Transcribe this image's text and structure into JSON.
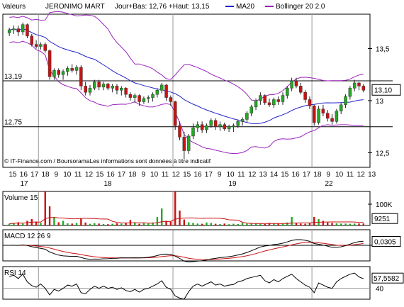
{
  "header": {
    "label_prefix": "Valeurs",
    "security": "JERONIMO MART",
    "range_text": "Jour+Bas: 12,76 +Haut: 13,15",
    "ma_legend": "MA20",
    "boll_legend": "Bollinger 20 2.0"
  },
  "colors": {
    "up": "#22aa22",
    "down": "#cc1111",
    "ma": "#2222cc",
    "bollinger": "#9922bb",
    "grid": "#9a9a9a",
    "volume_ma": "#cc1111",
    "macd_line": "#000000",
    "macd_signal": "#cc1111",
    "rsi_line": "#000000",
    "value_box": "#000000"
  },
  "price_panel": {
    "y_ticks": [
      "13,5",
      "13",
      "12,5"
    ],
    "hline_labels": [
      "13,19",
      "12,75"
    ],
    "last_value": "13,10",
    "watermark": "© IT-Finance.com / BoursoramaLes informations sont données à titre indicatif"
  },
  "x_axis": {
    "day_labels": [
      "15",
      "16",
      "17",
      "18",
      "9",
      "10",
      "11",
      "12",
      "15",
      "16",
      "17",
      "18",
      "9",
      "10",
      "11",
      "12",
      "15",
      "16",
      "17",
      "9",
      "10",
      "11",
      "12",
      "13",
      "14",
      "15",
      "16",
      "17",
      "18",
      "9",
      "10",
      "11",
      "12",
      "13"
    ],
    "month_labels": [
      "17",
      "18",
      "19",
      "22"
    ]
  },
  "volume_panel": {
    "title": "Volume 15",
    "axis_label": "100K",
    "last_value": "9251"
  },
  "macd_panel": {
    "title": "MACD 12 26 9",
    "last_value": "0,0305"
  },
  "rsi_panel": {
    "title": "RSI 14",
    "last_value": "57,5582",
    "axis_label": "40"
  },
  "chart_data": {
    "type": "candlestick",
    "instrument": "JERONIMO MART",
    "price_axis": {
      "ylim": [
        12.36,
        13.83
      ],
      "ticks": [
        13.5,
        13.0,
        12.5
      ]
    },
    "reference_lines": [
      13.19,
      12.75
    ],
    "last_price": 13.1,
    "day_range": {
      "low": 12.76,
      "high": 13.15
    },
    "candles": [
      {
        "o": 13.65,
        "h": 13.7,
        "l": 13.62,
        "c": 13.68
      },
      {
        "o": 13.68,
        "h": 13.72,
        "l": 13.64,
        "c": 13.69
      },
      {
        "o": 13.69,
        "h": 13.72,
        "l": 13.62,
        "c": 13.66
      },
      {
        "o": 13.66,
        "h": 13.75,
        "l": 13.63,
        "c": 13.73
      },
      {
        "o": 13.73,
        "h": 13.74,
        "l": 13.6,
        "c": 13.62
      },
      {
        "o": 13.62,
        "h": 13.64,
        "l": 13.52,
        "c": 13.54
      },
      {
        "o": 13.54,
        "h": 13.58,
        "l": 13.5,
        "c": 13.52
      },
      {
        "o": 13.52,
        "h": 13.56,
        "l": 13.49,
        "c": 13.54
      },
      {
        "o": 13.54,
        "h": 13.56,
        "l": 13.46,
        "c": 13.48
      },
      {
        "o": 13.48,
        "h": 13.49,
        "l": 13.2,
        "c": 13.23
      },
      {
        "o": 13.23,
        "h": 13.31,
        "l": 13.2,
        "c": 13.29
      },
      {
        "o": 13.29,
        "h": 13.31,
        "l": 13.22,
        "c": 13.25
      },
      {
        "o": 13.25,
        "h": 13.3,
        "l": 13.2,
        "c": 13.28
      },
      {
        "o": 13.28,
        "h": 13.33,
        "l": 13.24,
        "c": 13.31
      },
      {
        "o": 13.31,
        "h": 13.35,
        "l": 13.27,
        "c": 13.29
      },
      {
        "o": 13.29,
        "h": 13.34,
        "l": 13.25,
        "c": 13.32
      },
      {
        "o": 13.32,
        "h": 13.34,
        "l": 13.1,
        "c": 13.14
      },
      {
        "o": 13.14,
        "h": 13.18,
        "l": 13.05,
        "c": 13.08
      },
      {
        "o": 13.08,
        "h": 13.15,
        "l": 13.05,
        "c": 13.12
      },
      {
        "o": 13.12,
        "h": 13.2,
        "l": 13.1,
        "c": 13.18
      },
      {
        "o": 13.18,
        "h": 13.2,
        "l": 13.1,
        "c": 13.13
      },
      {
        "o": 13.13,
        "h": 13.18,
        "l": 13.1,
        "c": 13.16
      },
      {
        "o": 13.16,
        "h": 13.17,
        "l": 13.1,
        "c": 13.12
      },
      {
        "o": 13.12,
        "h": 13.16,
        "l": 13.08,
        "c": 13.14
      },
      {
        "o": 13.14,
        "h": 13.16,
        "l": 13.06,
        "c": 13.1
      },
      {
        "o": 13.1,
        "h": 13.14,
        "l": 13.05,
        "c": 13.12
      },
      {
        "o": 13.12,
        "h": 13.13,
        "l": 13.03,
        "c": 13.06
      },
      {
        "o": 13.06,
        "h": 13.08,
        "l": 13.0,
        "c": 13.03
      },
      {
        "o": 13.03,
        "h": 13.07,
        "l": 12.98,
        "c": 13.05
      },
      {
        "o": 13.05,
        "h": 13.06,
        "l": 12.95,
        "c": 12.99
      },
      {
        "o": 12.99,
        "h": 13.04,
        "l": 12.97,
        "c": 13.02
      },
      {
        "o": 13.02,
        "h": 13.05,
        "l": 12.98,
        "c": 13.03
      },
      {
        "o": 13.03,
        "h": 13.08,
        "l": 12.99,
        "c": 13.06
      },
      {
        "o": 13.06,
        "h": 13.12,
        "l": 13.03,
        "c": 13.1
      },
      {
        "o": 13.1,
        "h": 13.17,
        "l": 13.07,
        "c": 13.15
      },
      {
        "o": 13.15,
        "h": 13.16,
        "l": 13.0,
        "c": 13.03
      },
      {
        "o": 13.03,
        "h": 13.05,
        "l": 12.95,
        "c": 12.99
      },
      {
        "o": 12.99,
        "h": 13.0,
        "l": 12.72,
        "c": 12.76
      },
      {
        "o": 12.76,
        "h": 12.8,
        "l": 12.62,
        "c": 12.65
      },
      {
        "o": 12.65,
        "h": 12.7,
        "l": 12.44,
        "c": 12.52
      },
      {
        "o": 12.52,
        "h": 12.68,
        "l": 12.49,
        "c": 12.66
      },
      {
        "o": 12.66,
        "h": 12.78,
        "l": 12.63,
        "c": 12.74
      },
      {
        "o": 12.74,
        "h": 12.8,
        "l": 12.7,
        "c": 12.77
      },
      {
        "o": 12.77,
        "h": 12.8,
        "l": 12.69,
        "c": 12.72
      },
      {
        "o": 12.72,
        "h": 12.78,
        "l": 12.69,
        "c": 12.76
      },
      {
        "o": 12.76,
        "h": 12.83,
        "l": 12.74,
        "c": 12.81
      },
      {
        "o": 12.81,
        "h": 12.83,
        "l": 12.72,
        "c": 12.75
      },
      {
        "o": 12.75,
        "h": 12.8,
        "l": 12.71,
        "c": 12.77
      },
      {
        "o": 12.77,
        "h": 12.79,
        "l": 12.71,
        "c": 12.73
      },
      {
        "o": 12.73,
        "h": 12.77,
        "l": 12.7,
        "c": 12.75
      },
      {
        "o": 12.75,
        "h": 12.78,
        "l": 12.7,
        "c": 12.76
      },
      {
        "o": 12.76,
        "h": 12.82,
        "l": 12.74,
        "c": 12.8
      },
      {
        "o": 12.8,
        "h": 12.84,
        "l": 12.76,
        "c": 12.82
      },
      {
        "o": 12.82,
        "h": 12.9,
        "l": 12.79,
        "c": 12.88
      },
      {
        "o": 12.88,
        "h": 12.96,
        "l": 12.85,
        "c": 12.94
      },
      {
        "o": 12.94,
        "h": 13.02,
        "l": 12.91,
        "c": 13.0
      },
      {
        "o": 13.0,
        "h": 13.08,
        "l": 12.96,
        "c": 13.05
      },
      {
        "o": 13.05,
        "h": 13.06,
        "l": 12.96,
        "c": 12.98
      },
      {
        "o": 12.98,
        "h": 13.02,
        "l": 12.94,
        "c": 12.96
      },
      {
        "o": 12.96,
        "h": 13.03,
        "l": 12.93,
        "c": 13.01
      },
      {
        "o": 13.01,
        "h": 13.04,
        "l": 12.96,
        "c": 12.99
      },
      {
        "o": 12.99,
        "h": 13.08,
        "l": 12.96,
        "c": 13.05
      },
      {
        "o": 13.05,
        "h": 13.14,
        "l": 13.02,
        "c": 13.12
      },
      {
        "o": 13.12,
        "h": 13.22,
        "l": 13.09,
        "c": 13.19
      },
      {
        "o": 13.19,
        "h": 13.22,
        "l": 13.12,
        "c": 13.14
      },
      {
        "o": 13.14,
        "h": 13.17,
        "l": 13.06,
        "c": 13.08
      },
      {
        "o": 13.08,
        "h": 13.1,
        "l": 12.98,
        "c": 13.01
      },
      {
        "o": 13.01,
        "h": 13.04,
        "l": 12.92,
        "c": 12.95
      },
      {
        "o": 12.95,
        "h": 12.96,
        "l": 12.76,
        "c": 12.79
      },
      {
        "o": 12.79,
        "h": 12.95,
        "l": 12.77,
        "c": 12.92
      },
      {
        "o": 12.92,
        "h": 12.96,
        "l": 12.85,
        "c": 12.88
      },
      {
        "o": 12.88,
        "h": 12.91,
        "l": 12.8,
        "c": 12.83
      },
      {
        "o": 12.83,
        "h": 12.87,
        "l": 12.77,
        "c": 12.8
      },
      {
        "o": 12.8,
        "h": 12.92,
        "l": 12.78,
        "c": 12.9
      },
      {
        "o": 12.9,
        "h": 12.98,
        "l": 12.87,
        "c": 12.96
      },
      {
        "o": 12.96,
        "h": 13.06,
        "l": 12.93,
        "c": 13.04
      },
      {
        "o": 13.04,
        "h": 13.14,
        "l": 13.01,
        "c": 13.12
      },
      {
        "o": 13.12,
        "h": 13.2,
        "l": 13.09,
        "c": 13.17
      },
      {
        "o": 13.17,
        "h": 13.18,
        "l": 13.1,
        "c": 13.14
      },
      {
        "o": 13.14,
        "h": 13.16,
        "l": 13.08,
        "c": 13.1
      }
    ],
    "volume": {
      "ylim": [
        0,
        160000
      ],
      "ticks": [
        100000
      ],
      "last_value": 9251,
      "values": [
        8000,
        12000,
        15000,
        9000,
        22000,
        30000,
        18000,
        12000,
        160000,
        90000,
        40000,
        15000,
        22000,
        10000,
        9000,
        12000,
        35000,
        14000,
        8000,
        11000,
        9000,
        7000,
        6000,
        8000,
        10000,
        9000,
        12000,
        26000,
        15000,
        8000,
        11000,
        9000,
        14000,
        40000,
        80000,
        22000,
        18000,
        160000,
        70000,
        28000,
        15000,
        12000,
        9000,
        8000,
        14000,
        12000,
        8000,
        7000,
        9000,
        6000,
        8000,
        7000,
        12000,
        9000,
        11000,
        10000,
        8000,
        7000,
        12000,
        10000,
        9000,
        8000,
        14000,
        40000,
        12000,
        9000,
        8000,
        11000,
        40000,
        30000,
        22000,
        14000,
        12000,
        10000,
        9000,
        9000,
        8000,
        9000,
        9000,
        9251
      ]
    },
    "macd": {
      "last_value": 0.0305,
      "ylim": [
        -0.15,
        0.15
      ]
    },
    "rsi": {
      "last_value": 57.5582,
      "ylim": [
        20,
        80
      ],
      "ticks": [
        40
      ],
      "values": [
        62,
        64,
        58,
        66,
        52,
        45,
        42,
        48,
        40,
        28,
        38,
        35,
        40,
        46,
        44,
        48,
        32,
        30,
        38,
        44,
        40,
        44,
        40,
        42,
        38,
        41,
        36,
        34,
        38,
        33,
        38,
        40,
        44,
        48,
        54,
        42,
        38,
        26,
        22,
        20,
        34,
        44,
        48,
        44,
        48,
        52,
        46,
        48,
        44,
        46,
        47,
        52,
        54,
        58,
        60,
        62,
        64,
        54,
        50,
        56,
        52,
        58,
        62,
        66,
        58,
        52,
        46,
        42,
        32,
        50,
        46,
        42,
        40,
        52,
        58,
        62,
        66,
        68,
        61,
        57.5582
      ]
    }
  }
}
